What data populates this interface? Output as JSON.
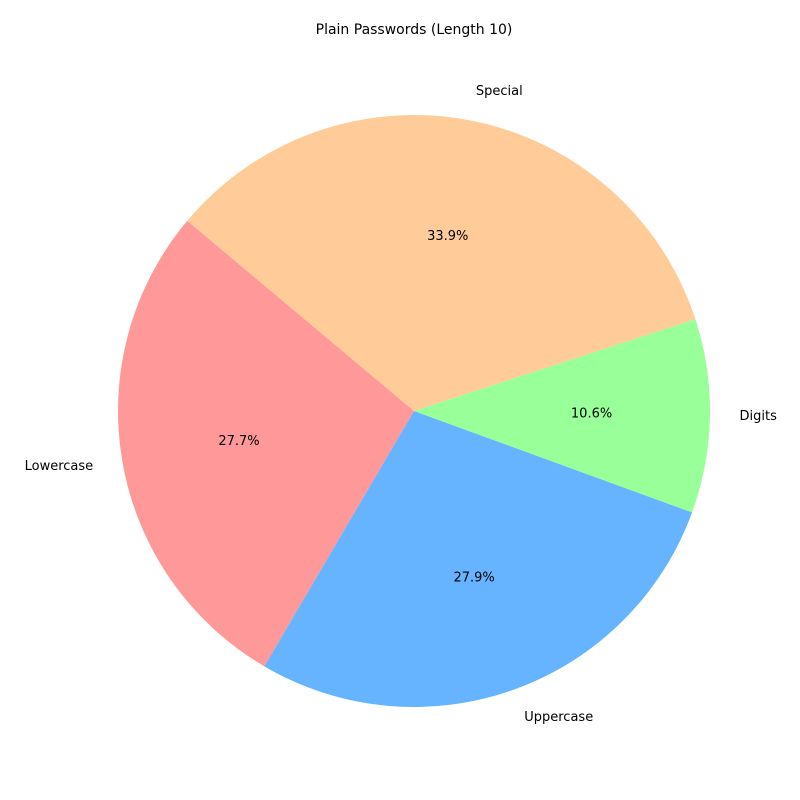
{
  "chart_data": {
    "type": "pie",
    "title": "Plain Passwords (Length 10)",
    "slices": [
      {
        "label": "Lowercase",
        "value": 27.7,
        "pct_label": "27.7%",
        "color": "#ff9999"
      },
      {
        "label": "Uppercase",
        "value": 27.9,
        "pct_label": "27.9%",
        "color": "#66b3ff"
      },
      {
        "label": "Digits",
        "value": 10.6,
        "pct_label": "10.6%",
        "color": "#99ff99"
      },
      {
        "label": "Special",
        "value": 33.9,
        "pct_label": "33.9%",
        "color": "#ffcc99"
      }
    ],
    "start_angle_deg": 140,
    "direction": "counterclockwise",
    "legend": "none"
  }
}
